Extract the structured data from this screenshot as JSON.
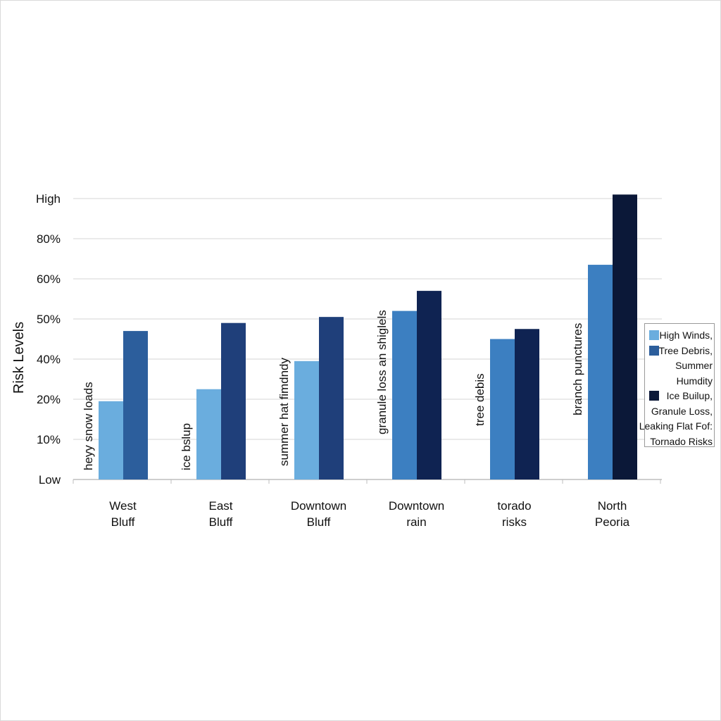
{
  "chart_data": {
    "type": "bar",
    "ylabel": "Risk Levels",
    "y_ticks": [
      {
        "label": "High",
        "value": 100
      },
      {
        "label": "80%",
        "value": 80
      },
      {
        "label": "60%",
        "value": 60
      },
      {
        "label": "50%",
        "value": 50
      },
      {
        "label": "40%",
        "value": 40
      },
      {
        "label": "20%",
        "value": 20
      },
      {
        "label": "10%",
        "value": 10
      },
      {
        "label": "Low",
        "value": 0
      }
    ],
    "grid": true,
    "legend_position": "right",
    "categories": [
      {
        "line1": "West",
        "line2": "Bluff",
        "annotation": "heyy snow loads"
      },
      {
        "line1": "East",
        "line2": "Bluff",
        "annotation": "ice bslup"
      },
      {
        "line1": "Downtown",
        "line2": "Bluff",
        "annotation": "summer hat fimdndy"
      },
      {
        "line1": "Downtown",
        "line2": "rain",
        "annotation": "granule loss an shiglels"
      },
      {
        "line1": "torado",
        "line2": "risks",
        "annotation": "tree debis"
      },
      {
        "line1": "North",
        "line2": "Peoria",
        "annotation": "branch punctures"
      }
    ],
    "bars": [
      [
        {
          "value": 19.5,
          "color": "#6aadde"
        },
        {
          "value": 47,
          "color": "#2c5e9c"
        }
      ],
      [
        {
          "value": 25,
          "color": "#6aadde"
        },
        {
          "value": 49,
          "color": "#1f3f7a"
        }
      ],
      [
        {
          "value": 39,
          "color": "#6aadde"
        },
        {
          "value": 50.5,
          "color": "#1f3f7a"
        }
      ],
      [
        {
          "value": 52,
          "color": "#3c7fc1"
        },
        {
          "value": 57,
          "color": "#0f2352"
        }
      ],
      [
        {
          "value": 45,
          "color": "#3c7fc1"
        },
        {
          "value": 47.5,
          "color": "#0f2352"
        }
      ],
      [
        {
          "value": 67,
          "color": "#3c7fc1"
        },
        {
          "value": 102,
          "color": "#0b1838"
        }
      ]
    ],
    "legend": [
      {
        "label": "High Winds,",
        "color": "#6aadde",
        "swatch": true
      },
      {
        "label": "Tree Debris,",
        "color": "#2c5e9c",
        "swatch": true
      },
      {
        "label": "Summer",
        "color": "",
        "swatch": false
      },
      {
        "label": "Humdity",
        "color": "",
        "swatch": false
      },
      {
        "label": "Ice Builup,",
        "color": "#0b1838",
        "swatch": true
      },
      {
        "label": "Granule Loss,",
        "color": "",
        "swatch": false
      },
      {
        "label": "Leaking Flat Fof:",
        "color": "",
        "swatch": false
      },
      {
        "label": "Tornado Risks",
        "color": "",
        "swatch": false
      }
    ]
  }
}
